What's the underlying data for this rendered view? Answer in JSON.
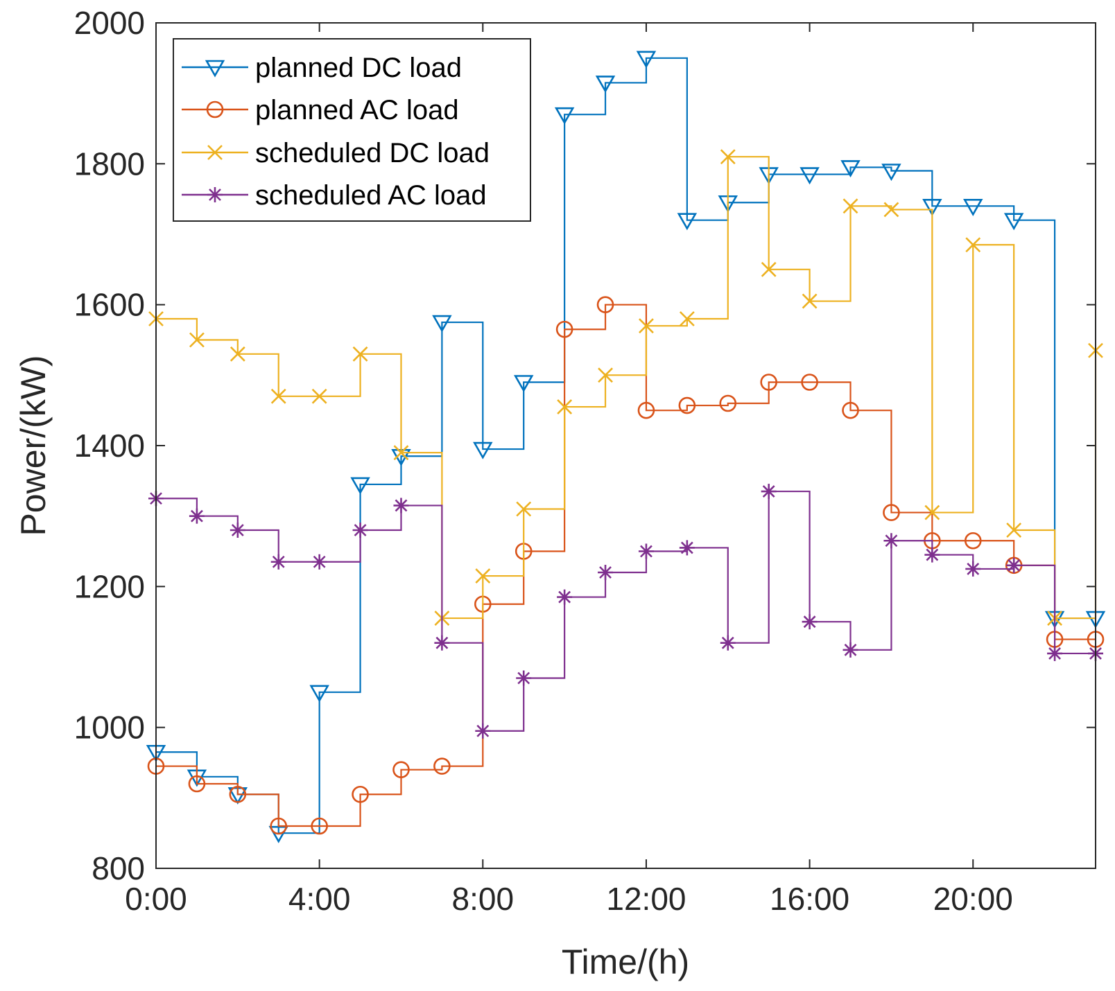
{
  "chart_data": {
    "type": "line",
    "step": true,
    "title": "",
    "xlabel": "Time/(h)",
    "ylabel": "Power/(kW)",
    "xlim": [
      0,
      23
    ],
    "ylim": [
      800,
      2000
    ],
    "x": [
      0,
      1,
      2,
      3,
      4,
      5,
      6,
      7,
      8,
      9,
      10,
      11,
      12,
      13,
      14,
      15,
      16,
      17,
      18,
      19,
      20,
      21,
      22,
      23
    ],
    "x_ticks": [
      0,
      4,
      8,
      12,
      16,
      20
    ],
    "x_tick_labels": [
      "0:00",
      "4:00",
      "8:00",
      "12:00",
      "16:00",
      "20:00"
    ],
    "y_ticks": [
      800,
      1000,
      1200,
      1400,
      1600,
      1800,
      2000
    ],
    "y_tick_labels": [
      "800",
      "1000",
      "1200",
      "1400",
      "1600",
      "1800",
      "2000"
    ],
    "legend_position": "top-left",
    "series": [
      {
        "name": "planned DC load",
        "color": "#0072BD",
        "marker": "triangle-down",
        "values": [
          965,
          930,
          905,
          850,
          1050,
          1345,
          1385,
          1575,
          1395,
          1490,
          1870,
          1915,
          1950,
          1720,
          1745,
          1785,
          1785,
          1795,
          1790,
          1740,
          1740,
          1720,
          1155,
          1155
        ]
      },
      {
        "name": "planned AC load",
        "color": "#D95319",
        "marker": "circle",
        "values": [
          945,
          920,
          905,
          860,
          860,
          905,
          940,
          945,
          1175,
          1250,
          1565,
          1600,
          1450,
          1457,
          1460,
          1490,
          1490,
          1450,
          1305,
          1265,
          1265,
          1230,
          1125,
          1125
        ]
      },
      {
        "name": "scheduled DC load",
        "color": "#EDB120",
        "marker": "x",
        "values": [
          1580,
          1550,
          1530,
          1470,
          1470,
          1530,
          1390,
          1155,
          1215,
          1310,
          1455,
          1500,
          1570,
          1580,
          1810,
          1650,
          1605,
          1740,
          1735,
          1305,
          1685,
          1280,
          1155,
          1535
        ]
      },
      {
        "name": "scheduled AC load",
        "color": "#7E2F8E",
        "marker": "asterisk",
        "values": [
          1325,
          1300,
          1280,
          1235,
          1235,
          1280,
          1315,
          1120,
          995,
          1070,
          1185,
          1220,
          1250,
          1255,
          1120,
          1335,
          1150,
          1110,
          1265,
          1245,
          1225,
          1230,
          1105,
          1105
        ]
      }
    ]
  }
}
